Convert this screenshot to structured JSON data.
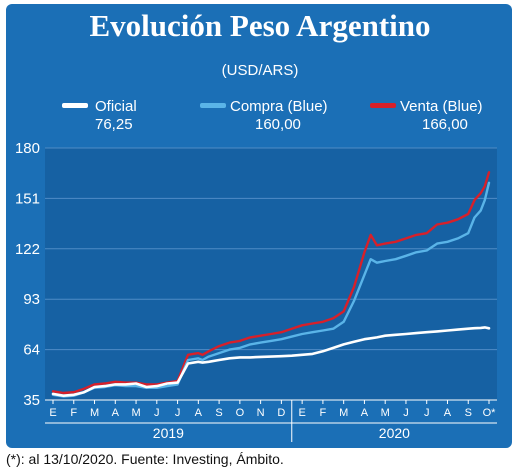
{
  "title": "Evolución Peso Argentino",
  "unit_label": "(USD/ARS)",
  "legend": [
    {
      "label": "Oficial",
      "value": "76,25",
      "color": "#ffffff"
    },
    {
      "label": "Compra (Blue)",
      "value": "160,00",
      "color": "#5ab4e8"
    },
    {
      "label": "Venta (Blue)",
      "value": "166,00",
      "color": "#d7202a"
    }
  ],
  "footnote": "(*): al 13/10/2020. Fuente: Investing, Ámbito.",
  "colors": {
    "panel": "#1b6fb6",
    "plot_bg": "#1661a3",
    "grid": "#4f8cc6"
  },
  "chart_data": {
    "type": "line",
    "ylim": [
      35,
      180
    ],
    "yticks": [
      35,
      64,
      93,
      122,
      151,
      180
    ],
    "months": [
      "E",
      "F",
      "M",
      "A",
      "M",
      "J",
      "J",
      "A",
      "S",
      "O",
      "N",
      "D",
      "E",
      "F",
      "M",
      "A",
      "M",
      "J",
      "J",
      "A",
      "S",
      "O*"
    ],
    "years": [
      "2019",
      "2020"
    ],
    "x_index": [
      0,
      0.5,
      1,
      1.5,
      2,
      2.5,
      3,
      3.5,
      4,
      4.5,
      5,
      5.5,
      6,
      6.5,
      7,
      7.2,
      7.5,
      8,
      8.5,
      9,
      9.5,
      10,
      10.5,
      11,
      11.5,
      12,
      12.5,
      13,
      13.5,
      14,
      14.5,
      15,
      15.3,
      15.6,
      16,
      16.5,
      17,
      17.5,
      18,
      18.5,
      19,
      19.5,
      20,
      20.3,
      20.6,
      20.8,
      21
    ],
    "series": [
      {
        "name": "Oficial",
        "color": "#ffffff",
        "values": [
          38.5,
          37.5,
          38,
          39.5,
          42.5,
          43,
          44,
          44,
          44.5,
          42.5,
          43,
          44.5,
          45,
          56,
          57,
          56.5,
          57,
          58,
          59,
          59.5,
          59.5,
          59.8,
          60,
          60.2,
          60.5,
          61,
          61.5,
          63,
          65,
          67,
          68.5,
          70,
          70.5,
          71,
          72,
          72.5,
          73,
          73.5,
          74,
          74.5,
          75,
          75.5,
          76,
          76.3,
          76.5,
          76.8,
          76.25
        ]
      },
      {
        "name": "Compra (Blue)",
        "color": "#5ab4e8",
        "values": [
          38,
          37,
          37.5,
          39.5,
          42,
          42.5,
          43.5,
          43,
          43,
          42,
          42,
          43,
          44,
          58,
          59,
          58,
          60,
          62,
          64,
          65,
          67,
          68,
          69,
          70,
          71.5,
          73,
          74,
          75,
          76,
          80,
          92,
          107,
          116,
          114,
          115,
          116,
          118,
          120,
          121,
          125,
          126,
          128,
          131,
          140,
          144,
          150,
          160
        ]
      },
      {
        "name": "Venta (Blue)",
        "color": "#d7202a",
        "values": [
          40,
          39,
          39.5,
          41.5,
          44,
          44.5,
          45.5,
          45,
          45,
          44,
          44,
          45,
          46,
          61,
          62,
          61,
          63,
          66,
          68,
          69,
          71,
          72,
          73,
          74,
          76,
          78,
          79,
          80,
          82,
          86,
          100,
          120,
          130,
          124,
          125,
          126,
          128,
          130,
          131,
          136,
          137,
          139,
          142,
          150,
          154,
          158,
          166
        ]
      }
    ]
  }
}
